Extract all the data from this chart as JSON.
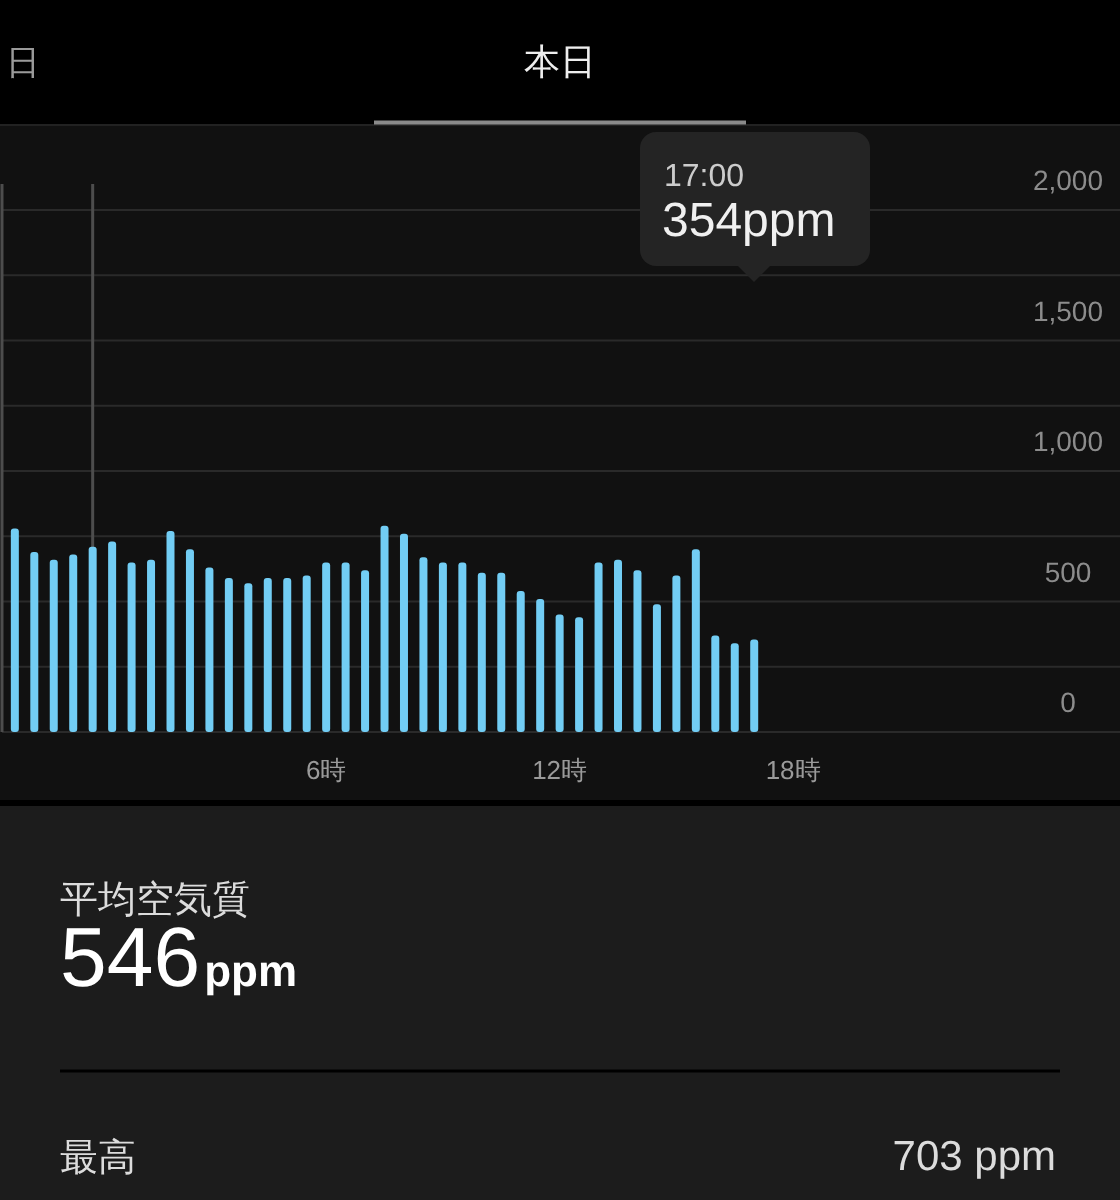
{
  "chart_data": {
    "type": "bar",
    "title": "本日",
    "x": [
      -2,
      -1.5,
      -1,
      -0.5,
      0,
      0.5,
      1,
      1.5,
      2,
      2.5,
      3,
      3.5,
      4,
      4.5,
      5,
      5.5,
      6,
      6.5,
      7,
      7.5,
      8,
      8.5,
      9,
      9.5,
      10,
      10.5,
      11,
      11.5,
      12,
      12.5,
      13,
      13.5,
      14,
      14.5,
      15,
      15.5,
      16,
      16.5,
      17
    ],
    "values": [
      780,
      690,
      660,
      680,
      710,
      730,
      650,
      660,
      770,
      700,
      630,
      590,
      570,
      590,
      590,
      600,
      650,
      650,
      620,
      790,
      760,
      670,
      650,
      650,
      610,
      610,
      540,
      510,
      450,
      440,
      650,
      660,
      620,
      490,
      600,
      700,
      370,
      340,
      354
    ],
    "color": "#72cdf4",
    "xlim": [
      -2.33,
      26.4
    ],
    "ylim": [
      0,
      2100
    ],
    "xticks": [
      {
        "value": 6,
        "label": "6時"
      },
      {
        "value": 12,
        "label": "12時"
      },
      {
        "value": 18,
        "label": "18時"
      }
    ],
    "yticks": [
      0,
      {
        "value": 250,
        "label": null
      },
      500,
      {
        "value": 750,
        "label": null
      },
      {
        "value": 1000,
        "label": "1,000"
      },
      {
        "value": 1250,
        "label": null
      },
      {
        "value": 1500,
        "label": "1,500"
      },
      {
        "value": 1750,
        "label": null
      },
      {
        "value": 2000,
        "label": "2,000"
      }
    ],
    "grid": "y",
    "ref_lines": [
      {
        "axis": "x",
        "value": 0,
        "color": "#4d4d4d"
      }
    ],
    "annotations": [
      "日",
      "17:00",
      "354ppm",
      "平均空気質",
      "546",
      "ppm",
      "最高",
      "703 ppm"
    ]
  }
}
